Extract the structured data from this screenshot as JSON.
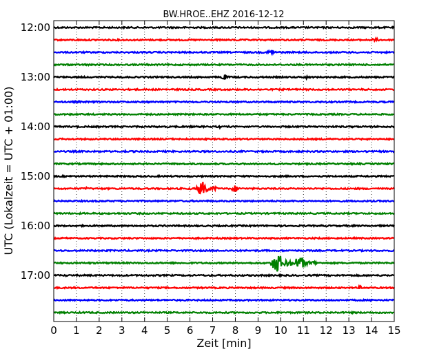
{
  "chart_data": {
    "type": "line",
    "title": "BW.HROE..EHZ 2016-12-12",
    "xlabel": "Zeit  [min]",
    "ylabel": "UTC (Lokalzeit = UTC + 01:00)",
    "xlim": [
      0,
      15
    ],
    "x_ticks": [
      0,
      1,
      2,
      3,
      4,
      5,
      6,
      7,
      8,
      9,
      10,
      11,
      12,
      13,
      14,
      15
    ],
    "x_tick_labels": [
      "0",
      "1",
      "2",
      "3",
      "4",
      "5",
      "6",
      "7",
      "8",
      "9",
      "10",
      "11",
      "12",
      "13",
      "14",
      "15"
    ],
    "y_tick_labels": [
      "12:00",
      "13:00",
      "14:00",
      "15:00",
      "16:00",
      "17:00"
    ],
    "grid": "vertical dotted",
    "trace_start_times": [
      "12:00",
      "12:15",
      "12:30",
      "12:45",
      "13:00",
      "13:15",
      "13:30",
      "13:45",
      "14:00",
      "14:15",
      "14:30",
      "14:45",
      "15:00",
      "15:15",
      "15:30",
      "15:45",
      "16:00",
      "16:15",
      "16:30",
      "16:45",
      "17:00",
      "17:15",
      "17:30",
      "17:45"
    ],
    "trace_colors": [
      "#000000",
      "#ff0000",
      "#0000ff",
      "#008000"
    ],
    "events": [
      {
        "trace": 1,
        "start": 13.9,
        "end": 14.7,
        "amp": 2.5
      },
      {
        "trace": 1,
        "start": 8.0,
        "end": 8.25,
        "amp": 2.5
      },
      {
        "trace": 2,
        "start": 9.35,
        "end": 10.1,
        "amp": 4
      },
      {
        "trace": 3,
        "start": 1.5,
        "end": 1.6,
        "amp": 2
      },
      {
        "trace": 4,
        "start": 7.3,
        "end": 7.9,
        "amp": 4
      },
      {
        "trace": 4,
        "start": 11.0,
        "end": 11.35,
        "amp": 3
      },
      {
        "trace": 4,
        "start": 9.1,
        "end": 9.2,
        "amp": 2
      },
      {
        "trace": 4,
        "start": 3.9,
        "end": 4.0,
        "amp": 2
      },
      {
        "trace": 8,
        "start": 7.25,
        "end": 7.4,
        "amp": 3
      },
      {
        "trace": 10,
        "start": 3.05,
        "end": 3.3,
        "amp": 2
      },
      {
        "trace": 12,
        "start": 3.3,
        "end": 3.45,
        "amp": 2
      },
      {
        "trace": 13,
        "start": 6.25,
        "end": 7.2,
        "amp": 10
      },
      {
        "trace": 13,
        "start": 7.8,
        "end": 8.3,
        "amp": 5
      },
      {
        "trace": 13,
        "start": 1.4,
        "end": 1.6,
        "amp": 3
      },
      {
        "trace": 13,
        "start": 6.0,
        "end": 6.15,
        "amp": 2
      },
      {
        "trace": 16,
        "start": 4.85,
        "end": 5.0,
        "amp": 2
      },
      {
        "trace": 16,
        "start": 9.85,
        "end": 10.0,
        "amp": 2
      },
      {
        "trace": 17,
        "start": 6.2,
        "end": 6.35,
        "amp": 2
      },
      {
        "trace": 19,
        "start": 9.55,
        "end": 10.5,
        "amp": 14
      },
      {
        "trace": 19,
        "start": 10.5,
        "end": 11.6,
        "amp": 9
      },
      {
        "trace": 20,
        "start": 0.5,
        "end": 0.6,
        "amp": 2
      },
      {
        "trace": 21,
        "start": 13.4,
        "end": 13.7,
        "amp": 3
      }
    ]
  }
}
